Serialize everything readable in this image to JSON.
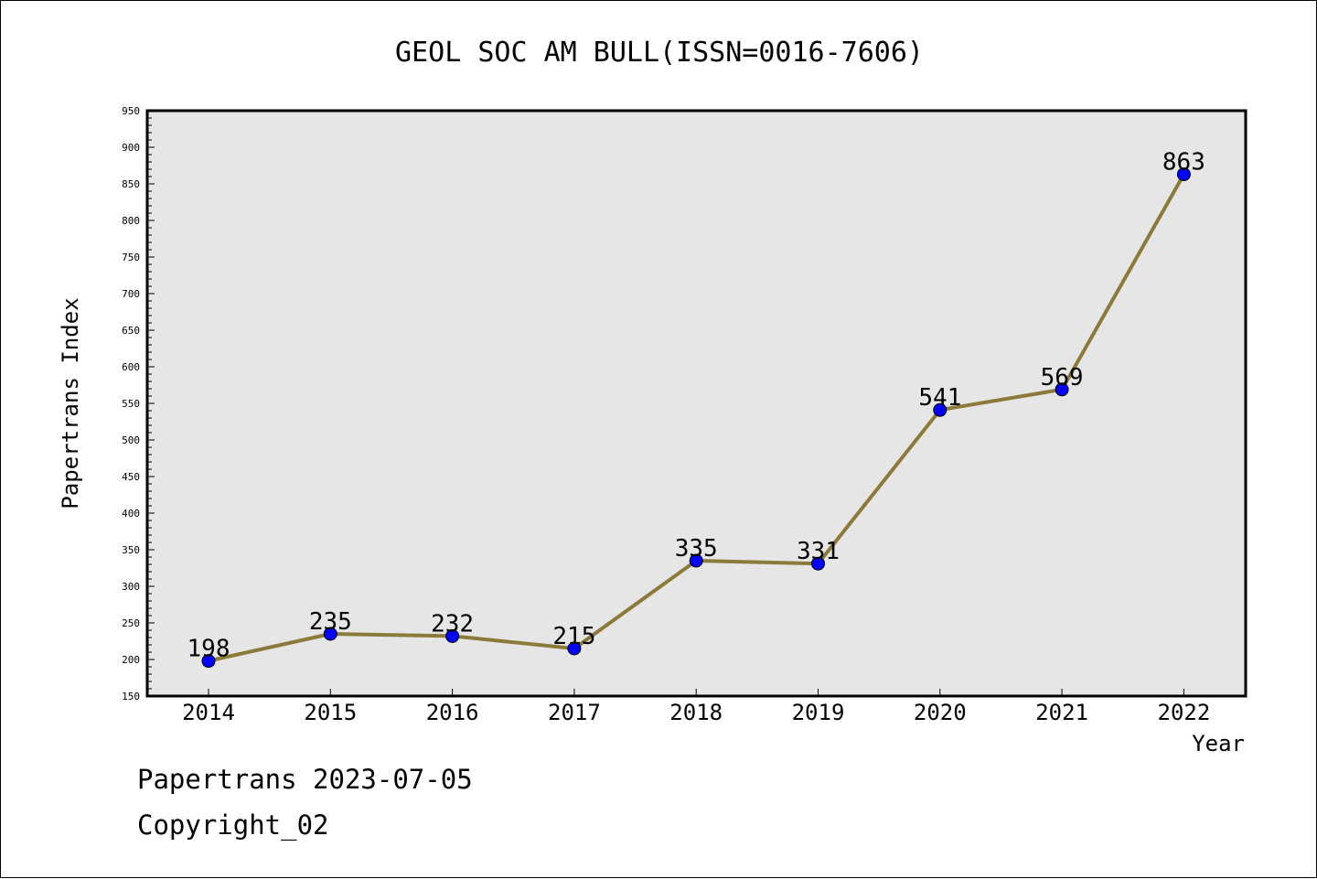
{
  "chart_data": {
    "type": "line",
    "title": "GEOL SOC AM BULL(ISSN=0016-7606)",
    "xlabel": "Year",
    "ylabel": "Papertrans Index",
    "categories": [
      "2014",
      "2015",
      "2016",
      "2017",
      "2018",
      "2019",
      "2020",
      "2021",
      "2022"
    ],
    "values": [
      198,
      235,
      232,
      215,
      335,
      331,
      541,
      569,
      863
    ],
    "data_labels": [
      "198",
      "235",
      "232",
      "215",
      "335",
      "331",
      "541",
      "569",
      "863"
    ],
    "ylim": [
      150,
      950
    ],
    "y_ticks": [
      "150",
      "200",
      "250",
      "300",
      "350",
      "400",
      "450",
      "500",
      "550",
      "600",
      "650",
      "700",
      "750",
      "800",
      "850",
      "900",
      "950"
    ],
    "grid": false,
    "legend": "none",
    "colors": {
      "line": "#8b7b3a",
      "marker": "#0000ff",
      "plot_background": "#e6e6e6"
    }
  },
  "footer": {
    "date": "Papertrans 2023-07-05",
    "copyright": "Copyright_02"
  }
}
